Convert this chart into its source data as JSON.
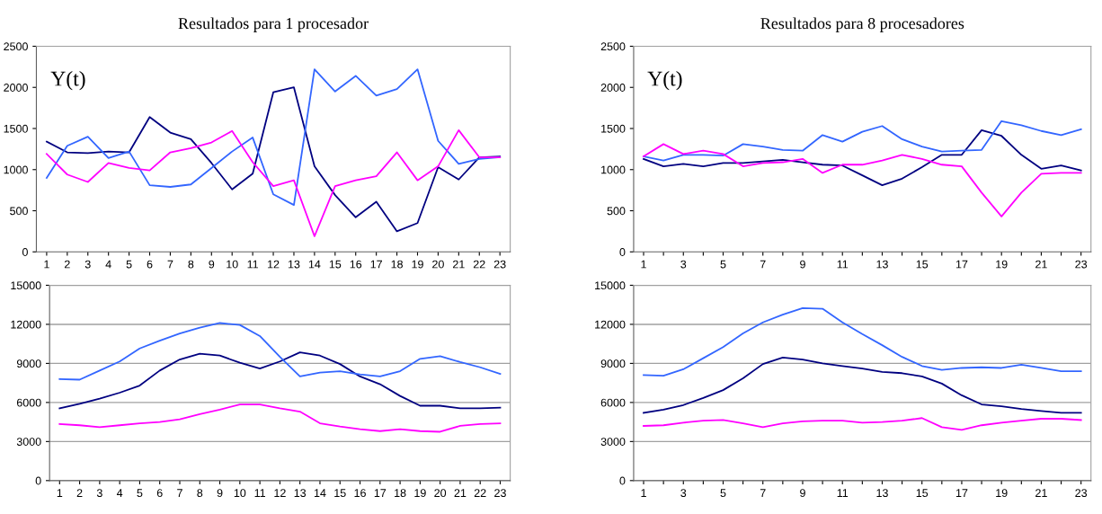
{
  "chart_data": [
    {
      "type": "line",
      "title": "Resultados para 1 procesador",
      "annotations": [
        "Y(t)"
      ],
      "categories": [
        "1",
        "2",
        "3",
        "4",
        "5",
        "6",
        "7",
        "8",
        "9",
        "10",
        "11",
        "12",
        "13",
        "14",
        "15",
        "16",
        "17",
        "18",
        "19",
        "20",
        "21",
        "22",
        "23"
      ],
      "ylim": [
        0,
        2500
      ],
      "yticks": [
        0,
        500,
        1000,
        1500,
        2000,
        2500
      ],
      "grid": false,
      "legend": false,
      "marker": "none",
      "line_style": "solid",
      "series": [
        {
          "color": "#000080",
          "values": [
            1340,
            1210,
            1200,
            1220,
            1210,
            1640,
            1450,
            1370,
            1080,
            760,
            950,
            1940,
            2000,
            1040,
            690,
            420,
            610,
            250,
            350,
            1030,
            880,
            1150,
            1160
          ]
        },
        {
          "color": "#3366ff",
          "values": [
            900,
            1290,
            1400,
            1140,
            1220,
            810,
            790,
            820,
            1020,
            1220,
            1390,
            700,
            570,
            2220,
            1950,
            2140,
            1900,
            1980,
            2220,
            1350,
            1070,
            1130,
            1150
          ]
        },
        {
          "color": "#ff00ff",
          "values": [
            1190,
            940,
            850,
            1080,
            1020,
            990,
            1210,
            1260,
            1330,
            1470,
            1090,
            800,
            870,
            190,
            800,
            870,
            920,
            1210,
            870,
            1040,
            1480,
            1150,
            1150
          ]
        }
      ]
    },
    {
      "type": "line",
      "title": "Resultados para 8 procesadores",
      "annotations": [
        "Y(t)"
      ],
      "categories": [
        "1",
        null,
        "3",
        null,
        "5",
        null,
        "7",
        null,
        "9",
        null,
        "11",
        null,
        "13",
        null,
        "15",
        null,
        "17",
        null,
        "19",
        null,
        "21",
        null,
        "23"
      ],
      "ylim": [
        0,
        2500
      ],
      "yticks": [
        0,
        500,
        1000,
        1500,
        2000,
        2500
      ],
      "grid": false,
      "legend": false,
      "marker": "none",
      "line_style": "solid",
      "series": [
        {
          "color": "#000080",
          "values": [
            1130,
            1040,
            1070,
            1040,
            1080,
            1080,
            1100,
            1120,
            1090,
            1060,
            1050,
            930,
            810,
            890,
            1030,
            1180,
            1180,
            1480,
            1410,
            1180,
            1010,
            1050,
            990
          ]
        },
        {
          "color": "#3366ff",
          "values": [
            1160,
            1110,
            1180,
            1180,
            1170,
            1310,
            1280,
            1240,
            1230,
            1420,
            1340,
            1460,
            1530,
            1370,
            1280,
            1220,
            1230,
            1240,
            1590,
            1540,
            1470,
            1420,
            1490
          ]
        },
        {
          "color": "#ff00ff",
          "values": [
            1160,
            1310,
            1190,
            1230,
            1190,
            1040,
            1080,
            1090,
            1130,
            960,
            1060,
            1060,
            1110,
            1180,
            1130,
            1060,
            1040,
            720,
            430,
            720,
            950,
            960,
            960
          ]
        }
      ]
    },
    {
      "type": "line",
      "categories": [
        "1",
        "2",
        "3",
        "4",
        "5",
        "6",
        "7",
        "8",
        "9",
        "10",
        "11",
        "12",
        "13",
        "14",
        "15",
        "16",
        "17",
        "18",
        "19",
        "20",
        "21",
        "22",
        "23"
      ],
      "ylim": [
        0,
        15000
      ],
      "yticks": [
        0,
        3000,
        6000,
        9000,
        12000,
        15000
      ],
      "grid": "y",
      "legend": false,
      "marker": "none",
      "line_style": "solid",
      "series": [
        {
          "color": "#000080",
          "values": [
            5550,
            5900,
            6300,
            6750,
            7300,
            8450,
            9300,
            9750,
            9600,
            9050,
            8600,
            9150,
            9850,
            9600,
            8950,
            8000,
            7400,
            6500,
            5750,
            5750,
            5550,
            5550,
            5600
          ]
        },
        {
          "color": "#3366ff",
          "values": [
            7800,
            7750,
            8450,
            9150,
            10150,
            10750,
            11300,
            11750,
            12100,
            11950,
            11100,
            9500,
            8000,
            8300,
            8400,
            8150,
            8000,
            8400,
            9350,
            9550,
            9100,
            8700,
            8200
          ]
        },
        {
          "color": "#ff00ff",
          "values": [
            4350,
            4250,
            4100,
            4250,
            4400,
            4500,
            4700,
            5100,
            5450,
            5850,
            5850,
            5550,
            5300,
            4400,
            4150,
            3950,
            3800,
            3950,
            3800,
            3750,
            4200,
            4350,
            4400
          ]
        }
      ]
    },
    {
      "type": "line",
      "categories": [
        "1",
        null,
        "3",
        null,
        "5",
        null,
        "7",
        null,
        "9",
        null,
        "11",
        null,
        "13",
        null,
        "15",
        null,
        "17",
        null,
        "19",
        null,
        "21",
        null,
        "23"
      ],
      "ylim": [
        0,
        15000
      ],
      "yticks": [
        0,
        3000,
        6000,
        9000,
        12000,
        15000
      ],
      "grid": "y",
      "legend": false,
      "marker": "none",
      "line_style": "solid",
      "series": [
        {
          "color": "#000080",
          "values": [
            5200,
            5450,
            5800,
            6350,
            6950,
            7850,
            8950,
            9450,
            9300,
            9000,
            8800,
            8600,
            8350,
            8250,
            8000,
            7450,
            6550,
            5850,
            5700,
            5500,
            5350,
            5200,
            5200
          ]
        },
        {
          "color": "#3366ff",
          "values": [
            8100,
            8050,
            8550,
            9400,
            10250,
            11300,
            12150,
            12750,
            13250,
            13200,
            12150,
            11250,
            10400,
            9500,
            8800,
            8500,
            8650,
            8700,
            8650,
            8900,
            8650,
            8400,
            8400
          ]
        },
        {
          "color": "#ff00ff",
          "values": [
            4200,
            4250,
            4450,
            4600,
            4650,
            4400,
            4100,
            4400,
            4550,
            4600,
            4600,
            4450,
            4500,
            4600,
            4800,
            4100,
            3900,
            4250,
            4450,
            4600,
            4750,
            4750,
            4650
          ]
        }
      ]
    }
  ]
}
